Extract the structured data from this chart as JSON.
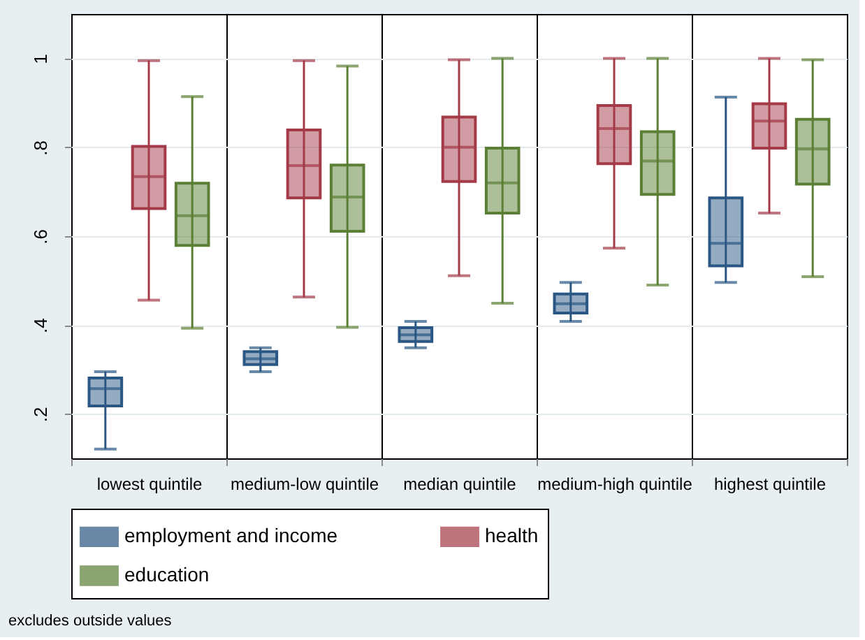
{
  "chart_data": {
    "type": "box",
    "categories": [
      "lowest quintile",
      "medium-low quintile",
      "median quintile",
      "medium-high quintile",
      "highest quintile"
    ],
    "ylim": [
      0.1,
      1.1
    ],
    "yticks": [
      {
        "value": 0.2,
        "label": ".2"
      },
      {
        "value": 0.4,
        "label": ".4"
      },
      {
        "value": 0.6,
        "label": ".6"
      },
      {
        "value": 0.8,
        "label": ".8"
      },
      {
        "value": 1,
        "label": "1"
      }
    ],
    "grid": "y",
    "legend": "bottom",
    "annotations": [
      "excludes outside values"
    ],
    "series": [
      {
        "name": "employment and income",
        "color": "#2a5783",
        "boxes": [
          {
            "low": 0.121,
            "q1": 0.218,
            "median": 0.257,
            "q3": 0.281,
            "high": 0.295
          },
          {
            "low": 0.295,
            "q1": 0.311,
            "median": 0.324,
            "q3": 0.34,
            "high": 0.349
          },
          {
            "low": 0.349,
            "q1": 0.363,
            "median": 0.378,
            "q3": 0.394,
            "high": 0.408
          },
          {
            "low": 0.408,
            "q1": 0.427,
            "median": 0.448,
            "q3": 0.47,
            "high": 0.496
          },
          {
            "low": 0.496,
            "q1": 0.533,
            "median": 0.584,
            "q3": 0.686,
            "high": 0.913
          }
        ]
      },
      {
        "name": "health",
        "color": "#a43a47",
        "boxes": [
          {
            "low": 0.456,
            "q1": 0.662,
            "median": 0.734,
            "q3": 0.802,
            "high": 0.995
          },
          {
            "low": 0.463,
            "q1": 0.686,
            "median": 0.759,
            "q3": 0.839,
            "high": 0.995
          },
          {
            "low": 0.511,
            "q1": 0.723,
            "median": 0.8,
            "q3": 0.868,
            "high": 0.997
          },
          {
            "low": 0.573,
            "q1": 0.763,
            "median": 0.842,
            "q3": 0.894,
            "high": 1.0
          },
          {
            "low": 0.652,
            "q1": 0.798,
            "median": 0.859,
            "q3": 0.898,
            "high": 1.0
          }
        ]
      },
      {
        "name": "education",
        "color": "#5b7f34",
        "boxes": [
          {
            "low": 0.393,
            "q1": 0.579,
            "median": 0.646,
            "q3": 0.719,
            "high": 0.914
          },
          {
            "low": 0.395,
            "q1": 0.611,
            "median": 0.688,
            "q3": 0.76,
            "high": 0.983
          },
          {
            "low": 0.449,
            "q1": 0.652,
            "median": 0.72,
            "q3": 0.798,
            "high": 1.0
          },
          {
            "low": 0.49,
            "q1": 0.694,
            "median": 0.769,
            "q3": 0.835,
            "high": 1.0
          },
          {
            "low": 0.509,
            "q1": 0.717,
            "median": 0.796,
            "q3": 0.863,
            "high": 0.997
          }
        ]
      }
    ]
  }
}
